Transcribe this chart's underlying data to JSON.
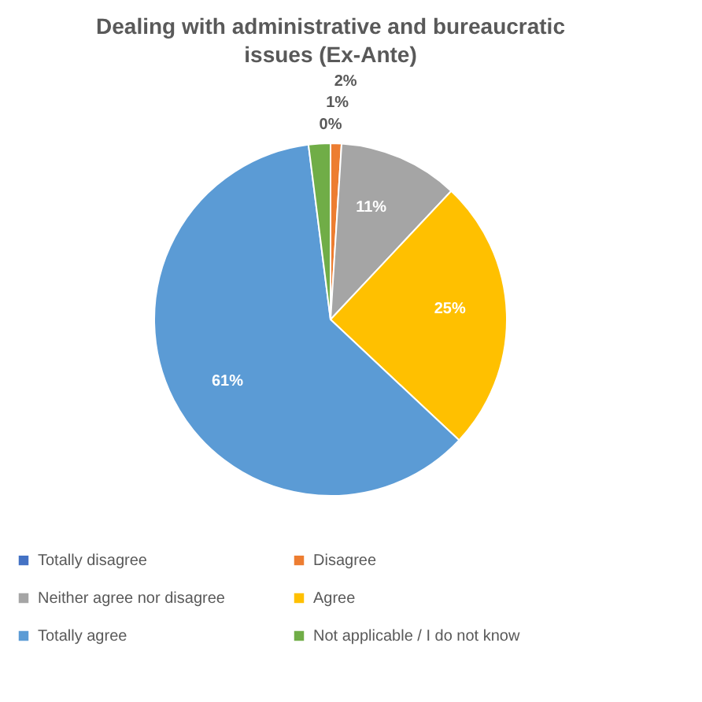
{
  "chart_data": {
    "type": "pie",
    "title": "Dealing with administrative and bureaucratic issues (Ex-Ante)",
    "categories": [
      "Totally disagree",
      "Disagree",
      "Neither agree nor disagree",
      "Agree",
      "Totally agree",
      "Not applicable / I do not know"
    ],
    "values": [
      0,
      1,
      11,
      25,
      61,
      2
    ],
    "colors": [
      "#4472c4",
      "#ed7d31",
      "#a5a5a5",
      "#ffc000",
      "#5b9bd5",
      "#70ad47"
    ],
    "value_labels": [
      "0%",
      "1%",
      "11%",
      "25%",
      "61%",
      "2%"
    ],
    "legend": "bottom"
  }
}
